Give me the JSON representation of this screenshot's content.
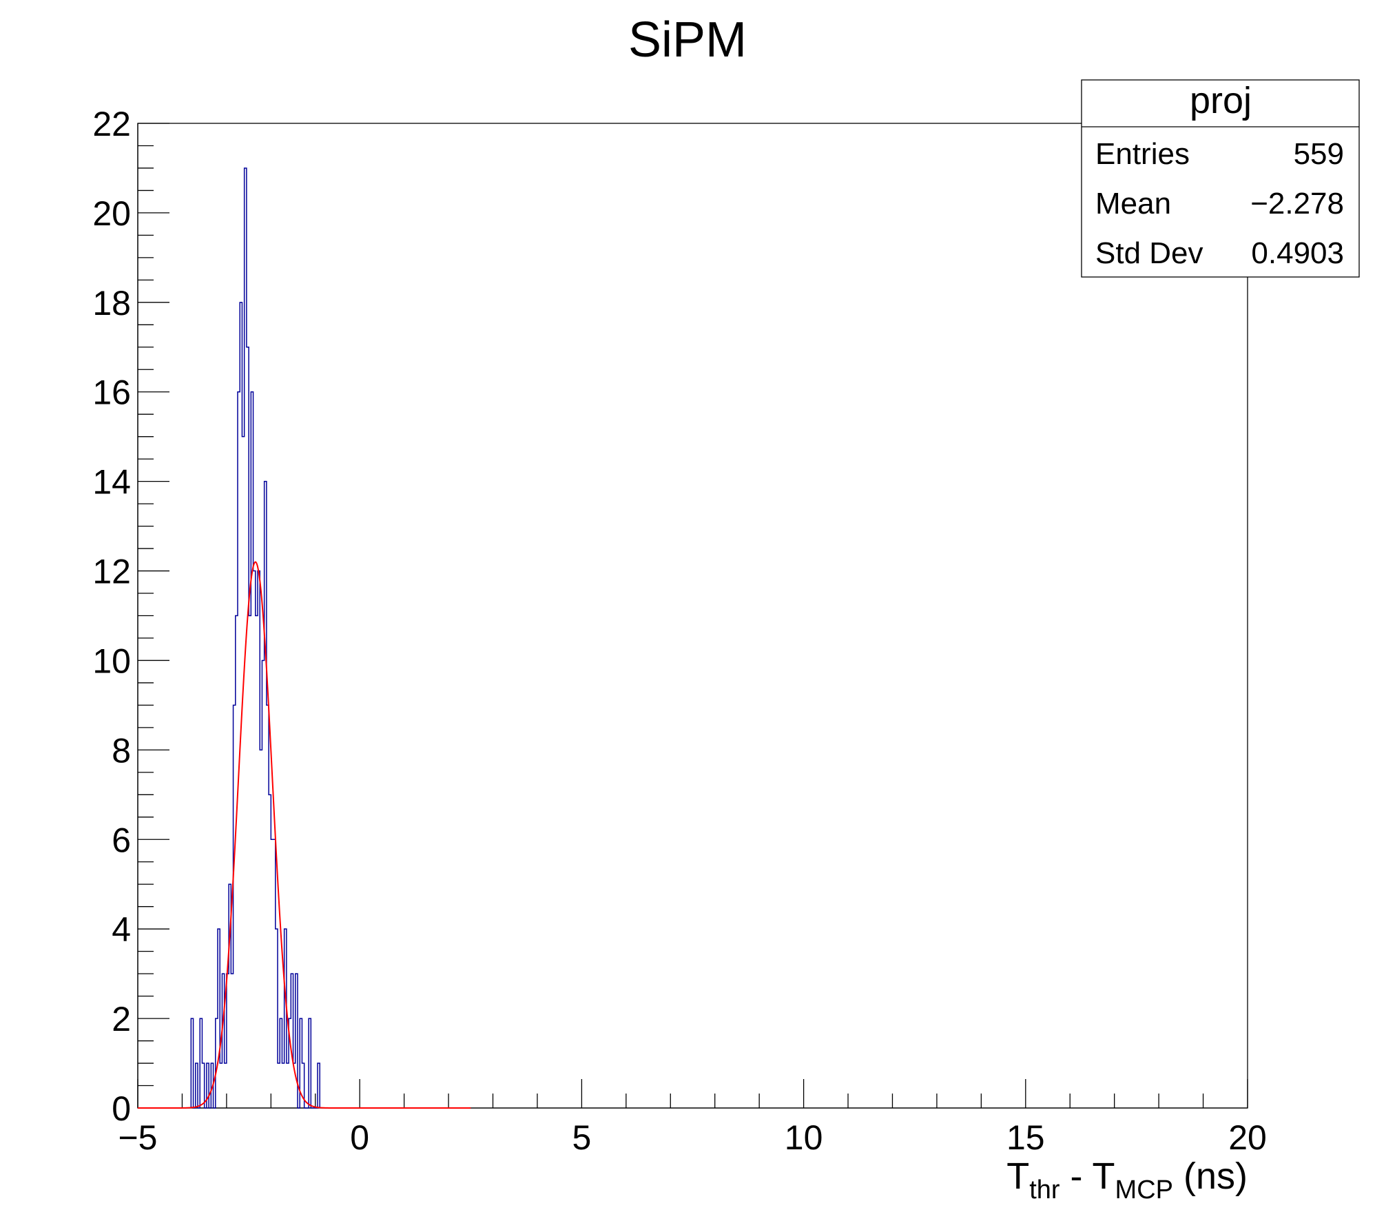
{
  "chart_data": {
    "type": "histogram",
    "title": "SiPM",
    "xlabel": {
      "main": "T",
      "sub1": "thr",
      "mid": " - T",
      "sub2": "MCP",
      "unit": " (ns)"
    },
    "ylabel": "",
    "xlim": [
      -5,
      20
    ],
    "ylim": [
      0,
      22
    ],
    "x_ticks": [
      {
        "value": -5,
        "label": "−5"
      },
      {
        "value": 0,
        "label": "0"
      },
      {
        "value": 5,
        "label": "5"
      },
      {
        "value": 10,
        "label": "10"
      },
      {
        "value": 15,
        "label": "15"
      },
      {
        "value": 20,
        "label": "20"
      }
    ],
    "y_ticks": [
      0,
      2,
      4,
      6,
      8,
      10,
      12,
      14,
      16,
      18,
      20,
      22
    ],
    "series": [
      {
        "kind": "histogram",
        "color": "#000099",
        "bin_width": 0.05,
        "bins": [
          {
            "x": -3.8,
            "y": 2
          },
          {
            "x": -3.75,
            "y": 0
          },
          {
            "x": -3.7,
            "y": 1
          },
          {
            "x": -3.65,
            "y": 0
          },
          {
            "x": -3.6,
            "y": 2
          },
          {
            "x": -3.55,
            "y": 1
          },
          {
            "x": -3.5,
            "y": 0
          },
          {
            "x": -3.45,
            "y": 1
          },
          {
            "x": -3.4,
            "y": 0
          },
          {
            "x": -3.35,
            "y": 1
          },
          {
            "x": -3.3,
            "y": 0
          },
          {
            "x": -3.25,
            "y": 2
          },
          {
            "x": -3.2,
            "y": 4
          },
          {
            "x": -3.15,
            "y": 1
          },
          {
            "x": -3.1,
            "y": 3
          },
          {
            "x": -3.05,
            "y": 1
          },
          {
            "x": -3.0,
            "y": 3
          },
          {
            "x": -2.95,
            "y": 5
          },
          {
            "x": -2.9,
            "y": 3
          },
          {
            "x": -2.85,
            "y": 9
          },
          {
            "x": -2.8,
            "y": 11
          },
          {
            "x": -2.75,
            "y": 16
          },
          {
            "x": -2.7,
            "y": 18
          },
          {
            "x": -2.65,
            "y": 15
          },
          {
            "x": -2.6,
            "y": 21
          },
          {
            "x": -2.55,
            "y": 17
          },
          {
            "x": -2.5,
            "y": 11
          },
          {
            "x": -2.45,
            "y": 16
          },
          {
            "x": -2.4,
            "y": 12
          },
          {
            "x": -2.35,
            "y": 11
          },
          {
            "x": -2.3,
            "y": 12
          },
          {
            "x": -2.25,
            "y": 8
          },
          {
            "x": -2.2,
            "y": 10
          },
          {
            "x": -2.15,
            "y": 14
          },
          {
            "x": -2.1,
            "y": 9
          },
          {
            "x": -2.05,
            "y": 7
          },
          {
            "x": -2.0,
            "y": 6
          },
          {
            "x": -1.95,
            "y": 6
          },
          {
            "x": -1.9,
            "y": 4
          },
          {
            "x": -1.85,
            "y": 1
          },
          {
            "x": -1.8,
            "y": 2
          },
          {
            "x": -1.75,
            "y": 1
          },
          {
            "x": -1.7,
            "y": 4
          },
          {
            "x": -1.65,
            "y": 1
          },
          {
            "x": -1.6,
            "y": 2
          },
          {
            "x": -1.55,
            "y": 3
          },
          {
            "x": -1.5,
            "y": 1
          },
          {
            "x": -1.45,
            "y": 3
          },
          {
            "x": -1.4,
            "y": 0
          },
          {
            "x": -1.35,
            "y": 2
          },
          {
            "x": -1.3,
            "y": 1
          },
          {
            "x": -1.25,
            "y": 0
          },
          {
            "x": -1.2,
            "y": 0
          },
          {
            "x": -1.15,
            "y": 2
          },
          {
            "x": -1.1,
            "y": 0
          },
          {
            "x": -1.05,
            "y": 0
          },
          {
            "x": -1.0,
            "y": 0
          },
          {
            "x": -0.95,
            "y": 1
          }
        ]
      },
      {
        "kind": "gaussian_fit",
        "color": "#ff0000",
        "amplitude": 12.2,
        "mean": -2.35,
        "sigma": 0.38,
        "x_range": [
          -5,
          2.5
        ]
      }
    ],
    "stats_box": {
      "title": "proj",
      "rows": [
        {
          "label": "Entries",
          "value": "559"
        },
        {
          "label": "Mean",
          "value": "−2.278"
        },
        {
          "label": "Std Dev",
          "value": "0.4903"
        }
      ]
    },
    "grid": false
  }
}
